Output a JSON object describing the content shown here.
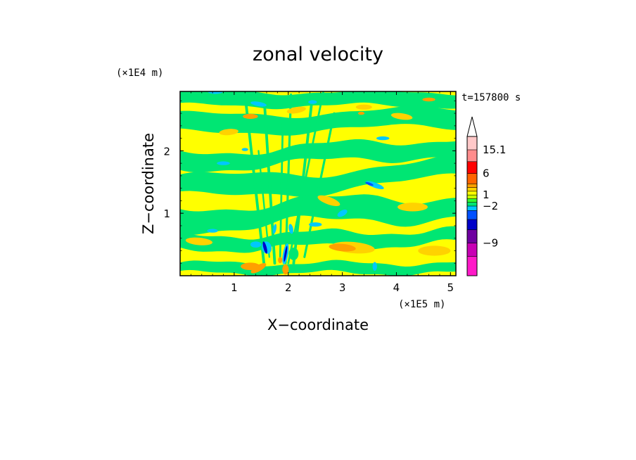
{
  "chart_data": {
    "type": "heatmap",
    "title": "zonal velocity",
    "xlabel": "X−coordinate",
    "ylabel": "Z−coordinate",
    "x_unit": "(×1E5 m)",
    "y_unit": "(×1E4 m)",
    "time_label": "t=157800 s",
    "xlim": [
      0,
      5.1
    ],
    "ylim": [
      0,
      2.95
    ],
    "x_ticks": [
      1,
      2,
      3,
      4,
      5
    ],
    "x_tick_labels": [
      "1",
      "2",
      "3",
      "4",
      "5"
    ],
    "y_ticks": [
      1,
      2
    ],
    "y_tick_labels": [
      "1",
      "2"
    ],
    "colorbar": {
      "labels": [
        {
          "text": "15.1",
          "value": 15.1
        },
        {
          "text": "6",
          "value": 6
        },
        {
          "text": "1",
          "value": 1
        },
        {
          "text": "−2",
          "value": -2
        },
        {
          "text": "−9",
          "value": -9
        }
      ],
      "colors_bottom_to_top": [
        "#ff19c8",
        "#c800b4",
        "#6e00a0",
        "#0000c8",
        "#0050ff",
        "#00c8ff",
        "#00e673",
        "#32ff32",
        "#c8ff00",
        "#ffff00",
        "#ffd200",
        "#ffa000",
        "#ff6400",
        "#ff0000",
        "#ff8c8c",
        "#ffc8c8"
      ],
      "extend_max": true
    },
    "field_colors": {
      "background": "#ffff00",
      "positive_small": "#ffd200",
      "positive_mid": "#ffa000",
      "negative_small": "#00e673",
      "negative_mid": "#00c8ff",
      "negative_large": "#0050ff",
      "negative_extreme": "#0000c8"
    }
  }
}
